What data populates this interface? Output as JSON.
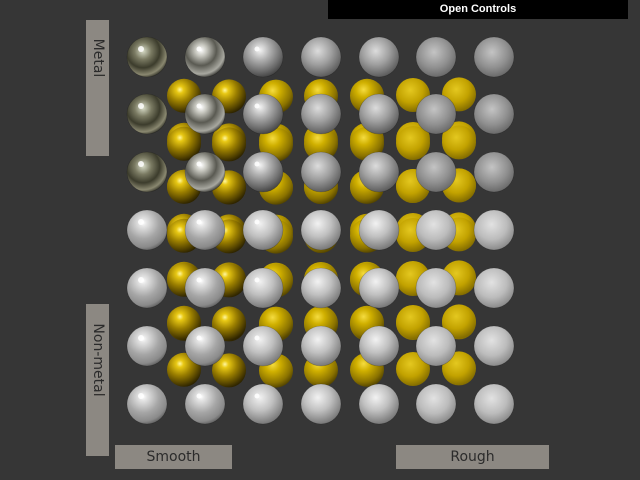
{
  "controls": {
    "label": "Open Controls"
  },
  "axis_labels": {
    "metal": "Metal",
    "non_metal": "Non-metal",
    "smooth": "Smooth",
    "rough": "Rough"
  },
  "grid": {
    "rows": 7,
    "columns": 7,
    "top_row": "metal",
    "bottom_row": "non-metal",
    "left_column": "smooth",
    "right_column": "rough"
  },
  "colors": {
    "background": "#363636",
    "label_box": "#8c8882",
    "label_text": "#2b2b2b",
    "button_bg": "#000000",
    "button_text": "#ffffff",
    "sphere_silver": "#c8c8c8",
    "sphere_gold": "#c8aa00"
  }
}
